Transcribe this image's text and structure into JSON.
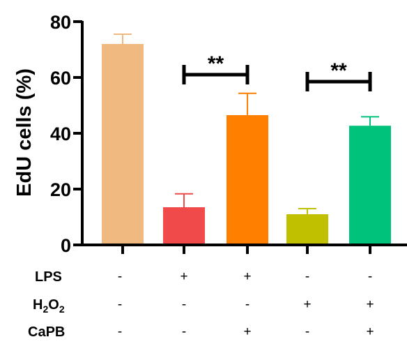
{
  "chart_data": {
    "type": "bar",
    "ylabel": "EdU cells (%)",
    "ylim": [
      0,
      80
    ],
    "yticks": [
      "0",
      "20",
      "40",
      "60",
      "80"
    ],
    "bars": [
      {
        "value": 72,
        "error": 3.5,
        "color": "#F0B97F"
      },
      {
        "value": 13.5,
        "error": 4.8,
        "color": "#F04A4A"
      },
      {
        "value": 46.5,
        "error": 7.8,
        "color": "#FF8000"
      },
      {
        "value": 11,
        "error": 2,
        "color": "#C0C000"
      },
      {
        "value": 42.7,
        "error": 3.2,
        "color": "#00C27A"
      }
    ],
    "conditions": [
      {
        "label": "LPS",
        "signs": [
          "-",
          "+",
          "+",
          "-",
          "-"
        ]
      },
      {
        "label_main": "H",
        "label_sub": "2",
        "label_mid": "O",
        "label_sub2": "2",
        "signs": [
          "-",
          "-",
          "-",
          "+",
          "+"
        ]
      },
      {
        "label": "CaPB",
        "signs": [
          "-",
          "-",
          "+",
          "-",
          "+"
        ]
      }
    ],
    "significance": [
      {
        "from": 1,
        "to": 2,
        "y": 61,
        "label": "**"
      },
      {
        "from": 3,
        "to": 4,
        "y": 58.5,
        "label": "**"
      }
    ]
  }
}
